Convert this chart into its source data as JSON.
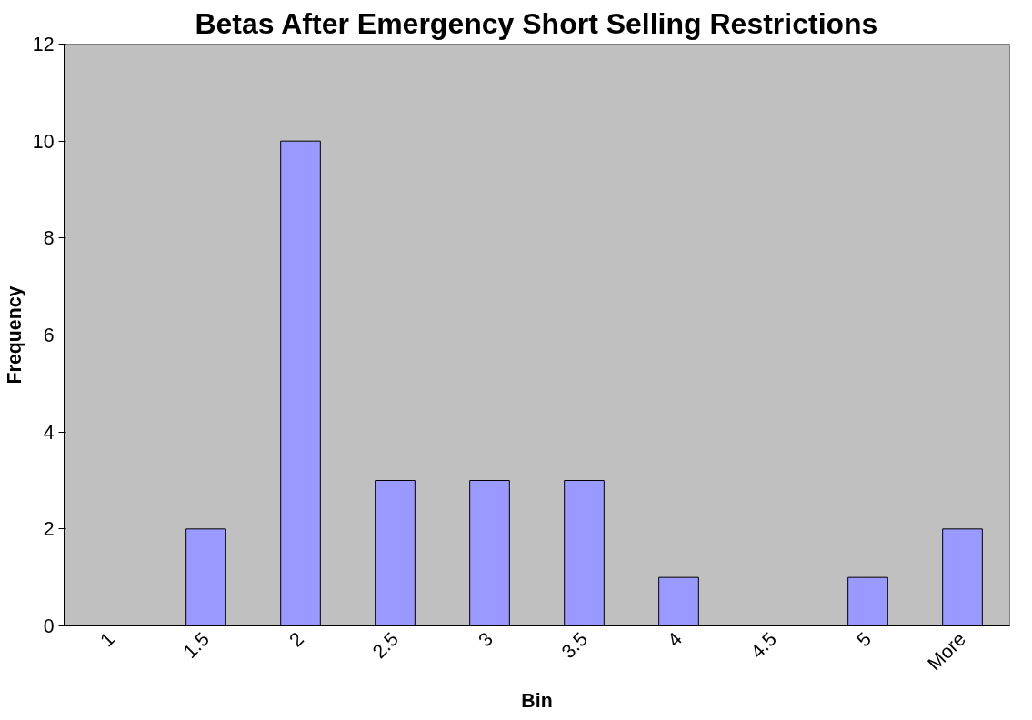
{
  "chart_data": {
    "type": "bar",
    "title": "Betas After Emergency Short Selling Restrictions",
    "xlabel": "Bin",
    "ylabel": "Frequency",
    "categories": [
      "1",
      "1.5",
      "2",
      "2.5",
      "3",
      "3.5",
      "4",
      "4.5",
      "5",
      "More"
    ],
    "values": [
      0,
      2,
      10,
      3,
      3,
      3,
      1,
      0,
      1,
      2
    ],
    "color": "#9999ff",
    "ylim": [
      0,
      12
    ],
    "yticks": [
      0,
      2,
      4,
      6,
      8,
      10,
      12
    ],
    "grid": false
  }
}
